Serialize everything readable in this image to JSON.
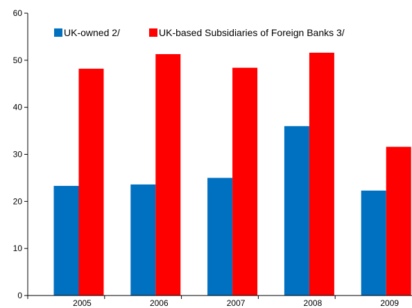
{
  "chart_data": {
    "type": "bar",
    "categories": [
      "2005",
      "2006",
      "2007",
      "2008",
      "2009"
    ],
    "series": [
      {
        "name": "UK-owned 2/",
        "color": "#0070C0",
        "values": [
          23.3,
          23.6,
          25.0,
          36.0,
          22.3
        ]
      },
      {
        "name": "UK-based Subsidiaries of Foreign Banks 3/",
        "color": "#FF0000",
        "values": [
          48.2,
          51.3,
          48.4,
          51.6,
          31.6
        ]
      }
    ],
    "ylim": [
      0,
      60
    ],
    "yticks": [
      "0",
      "10",
      "20",
      "30",
      "40",
      "50",
      "60"
    ],
    "legend_position": "top",
    "grid": false
  }
}
